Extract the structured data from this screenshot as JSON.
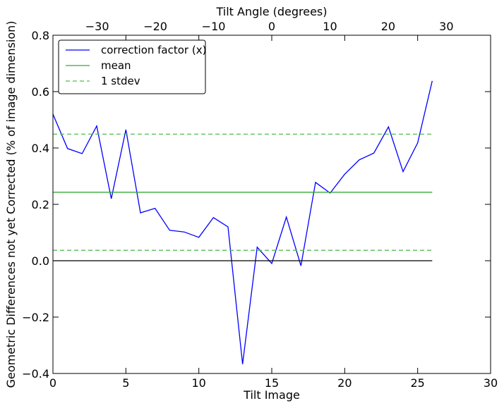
{
  "chart_data": {
    "type": "line",
    "xlabel": "Tilt Image",
    "ylabel": "Geometric Differences not yet Corrected (% of image dimension)",
    "top_xlabel": "Tilt Angle (degrees)",
    "xlim": [
      0,
      30
    ],
    "ylim": [
      -0.4,
      0.8
    ],
    "top_xlim": [
      -37.6,
      37.6
    ],
    "x_ticks": [
      0,
      5,
      10,
      15,
      20,
      25,
      30
    ],
    "x_tick_labels": [
      "0",
      "5",
      "10",
      "15",
      "20",
      "25",
      "30"
    ],
    "y_ticks": [
      -0.4,
      -0.2,
      0.0,
      0.2,
      0.4,
      0.6,
      0.8
    ],
    "y_tick_labels": [
      "−0.4",
      "−0.2",
      "0.0",
      "0.2",
      "0.4",
      "0.6",
      "0.8"
    ],
    "top_ticks": [
      -30,
      -20,
      -10,
      0,
      10,
      20,
      30
    ],
    "top_tick_labels": [
      "−30",
      "−20",
      "−10",
      "0",
      "10",
      "20",
      "30"
    ],
    "grid": false,
    "legend_position": "top-left",
    "series": [
      {
        "name": "correction factor (x)",
        "color": "#0000ff",
        "style": "solid",
        "x": [
          0,
          1,
          2,
          3,
          4,
          5,
          6,
          7,
          8,
          9,
          10,
          11,
          12,
          13,
          14,
          15,
          16,
          17,
          18,
          19,
          20,
          21,
          22,
          23,
          24,
          25,
          26
        ],
        "y": [
          0.52,
          0.398,
          0.38,
          0.478,
          0.22,
          0.465,
          0.17,
          0.186,
          0.108,
          0.102,
          0.083,
          0.153,
          0.12,
          -0.367,
          0.048,
          -0.01,
          0.155,
          -0.018,
          0.278,
          0.24,
          0.307,
          0.358,
          0.382,
          0.475,
          0.316,
          0.418,
          0.638
        ]
      },
      {
        "name": "mean",
        "color": "#33aa33",
        "style": "solid",
        "x": [
          0,
          26
        ],
        "y": [
          0.243,
          0.243
        ]
      },
      {
        "name": "1 stdev",
        "color": "#55bb55",
        "style": "dashed",
        "x": [
          0,
          26
        ],
        "y": [
          0.449,
          0.449
        ],
        "x2": [
          0,
          26
        ],
        "y2": [
          0.037,
          0.037
        ]
      },
      {
        "name": "",
        "color": "#000000",
        "style": "solid",
        "x": [
          0,
          26
        ],
        "y": [
          0.0,
          0.0
        ]
      }
    ]
  }
}
